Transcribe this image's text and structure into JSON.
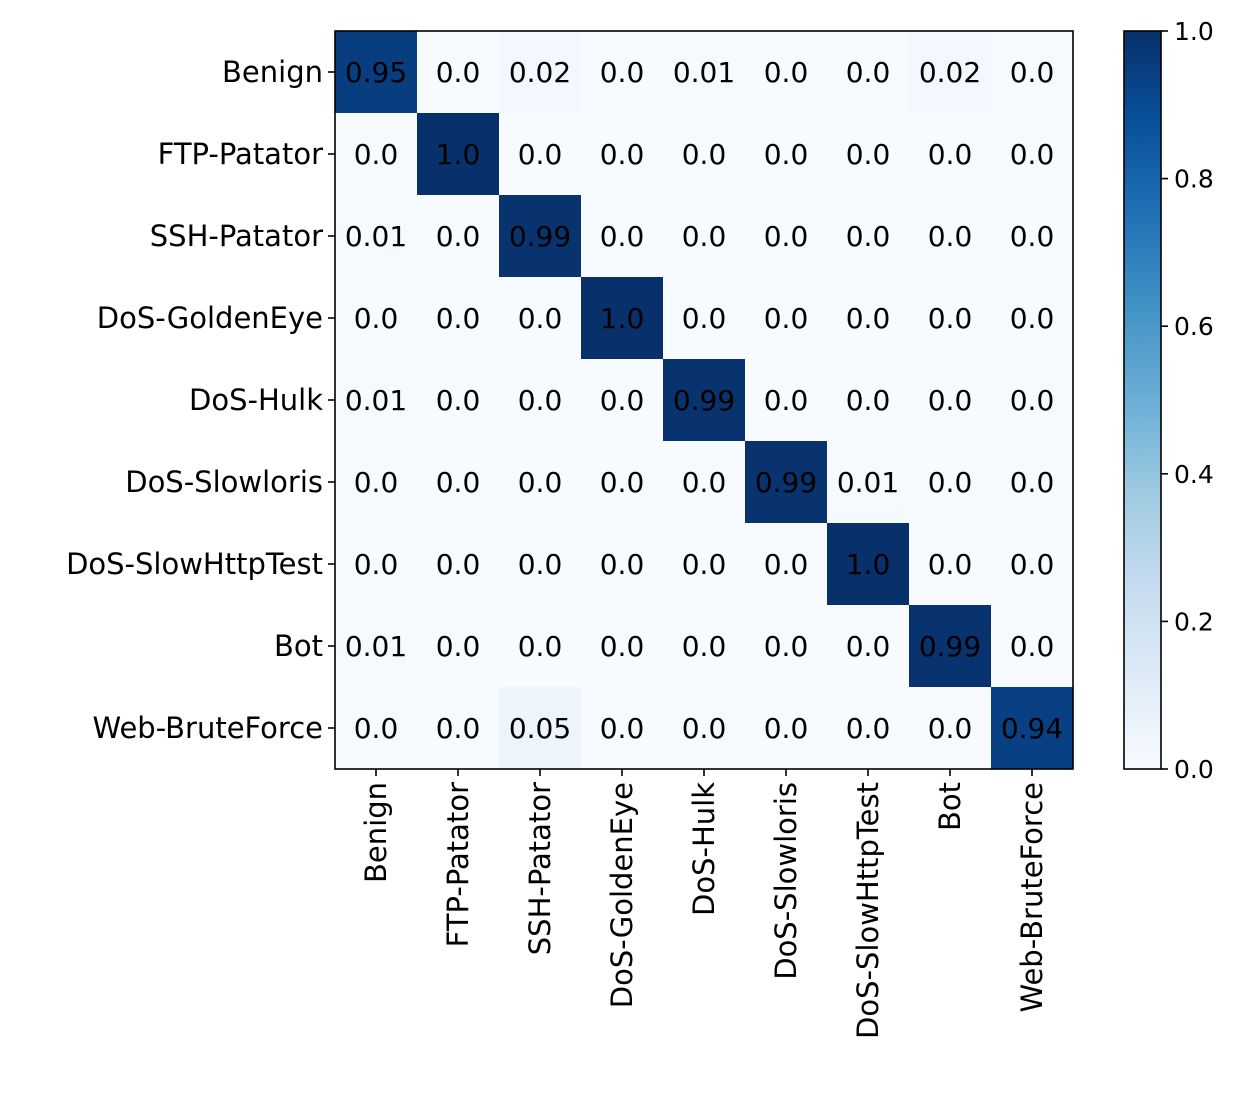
{
  "chart_data": {
    "type": "heatmap",
    "title": "",
    "xlabel": "",
    "ylabel": "",
    "row_labels": [
      "Benign",
      "FTP-Patator",
      "SSH-Patator",
      "DoS-GoldenEye",
      "DoS-Hulk",
      "DoS-Slowloris",
      "DoS-SlowHttpTest",
      "Bot",
      "Web-BruteForce"
    ],
    "col_labels": [
      "Benign",
      "FTP-Patator",
      "SSH-Patator",
      "DoS-GoldenEye",
      "DoS-Hulk",
      "DoS-Slowloris",
      "DoS-SlowHttpTest",
      "Bot",
      "Web-BruteForce"
    ],
    "values": [
      [
        0.95,
        0.0,
        0.02,
        0.0,
        0.01,
        0.0,
        0.0,
        0.02,
        0.0
      ],
      [
        0.0,
        1.0,
        0.0,
        0.0,
        0.0,
        0.0,
        0.0,
        0.0,
        0.0
      ],
      [
        0.01,
        0.0,
        0.99,
        0.0,
        0.0,
        0.0,
        0.0,
        0.0,
        0.0
      ],
      [
        0.0,
        0.0,
        0.0,
        1.0,
        0.0,
        0.0,
        0.0,
        0.0,
        0.0
      ],
      [
        0.01,
        0.0,
        0.0,
        0.0,
        0.99,
        0.0,
        0.0,
        0.0,
        0.0
      ],
      [
        0.0,
        0.0,
        0.0,
        0.0,
        0.0,
        0.99,
        0.01,
        0.0,
        0.0
      ],
      [
        0.0,
        0.0,
        0.0,
        0.0,
        0.0,
        0.0,
        1.0,
        0.0,
        0.0
      ],
      [
        0.01,
        0.0,
        0.0,
        0.0,
        0.0,
        0.0,
        0.0,
        0.99,
        0.0
      ],
      [
        0.0,
        0.0,
        0.05,
        0.0,
        0.0,
        0.0,
        0.0,
        0.0,
        0.94
      ]
    ],
    "cell_text": [
      [
        "0.95",
        "0.0",
        "0.02",
        "0.0",
        "0.01",
        "0.0",
        "0.0",
        "0.02",
        "0.0"
      ],
      [
        "0.0",
        "1.0",
        "0.0",
        "0.0",
        "0.0",
        "0.0",
        "0.0",
        "0.0",
        "0.0"
      ],
      [
        "0.01",
        "0.0",
        "0.99",
        "0.0",
        "0.0",
        "0.0",
        "0.0",
        "0.0",
        "0.0"
      ],
      [
        "0.0",
        "0.0",
        "0.0",
        "1.0",
        "0.0",
        "0.0",
        "0.0",
        "0.0",
        "0.0"
      ],
      [
        "0.01",
        "0.0",
        "0.0",
        "0.0",
        "0.99",
        "0.0",
        "0.0",
        "0.0",
        "0.0"
      ],
      [
        "0.0",
        "0.0",
        "0.0",
        "0.0",
        "0.0",
        "0.99",
        "0.01",
        "0.0",
        "0.0"
      ],
      [
        "0.0",
        "0.0",
        "0.0",
        "0.0",
        "0.0",
        "0.0",
        "1.0",
        "0.0",
        "0.0"
      ],
      [
        "0.01",
        "0.0",
        "0.0",
        "0.0",
        "0.0",
        "0.0",
        "0.0",
        "0.99",
        "0.0"
      ],
      [
        "0.0",
        "0.0",
        "0.05",
        "0.0",
        "0.0",
        "0.0",
        "0.0",
        "0.0",
        "0.94"
      ]
    ],
    "colormap": "Blues",
    "colorbar": {
      "range": [
        0.0,
        1.0
      ],
      "ticks": [
        0.0,
        0.2,
        0.4,
        0.6,
        0.8,
        1.0
      ],
      "tick_labels": [
        "0.0",
        "0.2",
        "0.4",
        "0.6",
        "0.8",
        "1.0"
      ]
    },
    "x_tick_rotation": "vertical",
    "grid": false,
    "legend": "none"
  }
}
